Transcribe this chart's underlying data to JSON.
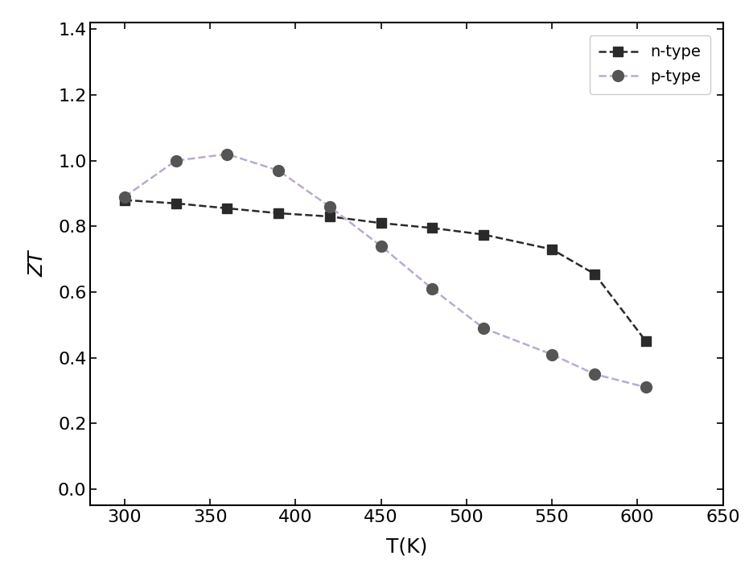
{
  "n_type_T": [
    300,
    330,
    360,
    390,
    420,
    450,
    480,
    510,
    550,
    575,
    605
  ],
  "n_type_ZT": [
    0.88,
    0.87,
    0.855,
    0.84,
    0.83,
    0.81,
    0.795,
    0.775,
    0.73,
    0.655,
    0.45
  ],
  "p_type_T": [
    300,
    330,
    360,
    390,
    420,
    450,
    480,
    510,
    550,
    575,
    605
  ],
  "p_type_ZT": [
    0.89,
    1.0,
    1.02,
    0.97,
    0.86,
    0.74,
    0.61,
    0.49,
    0.41,
    0.35,
    0.31
  ],
  "n_type_marker_color": "#2a2a2a",
  "n_type_line_color": "#2a2a2a",
  "p_type_marker_color": "#555555",
  "p_type_line_color": "#bbaacc",
  "xlabel": "T(K)",
  "ylabel": "ZT",
  "xlim": [
    280,
    650
  ],
  "ylim": [
    -0.05,
    1.42
  ],
  "xticks": [
    300,
    350,
    400,
    450,
    500,
    550,
    600,
    650
  ],
  "yticks": [
    0.0,
    0.2,
    0.4,
    0.6,
    0.8,
    1.0,
    1.2,
    1.4
  ],
  "n_label": "n-type",
  "p_label": "p-type",
  "fig_width": 9.36,
  "fig_height": 7.06,
  "dpi": 100
}
